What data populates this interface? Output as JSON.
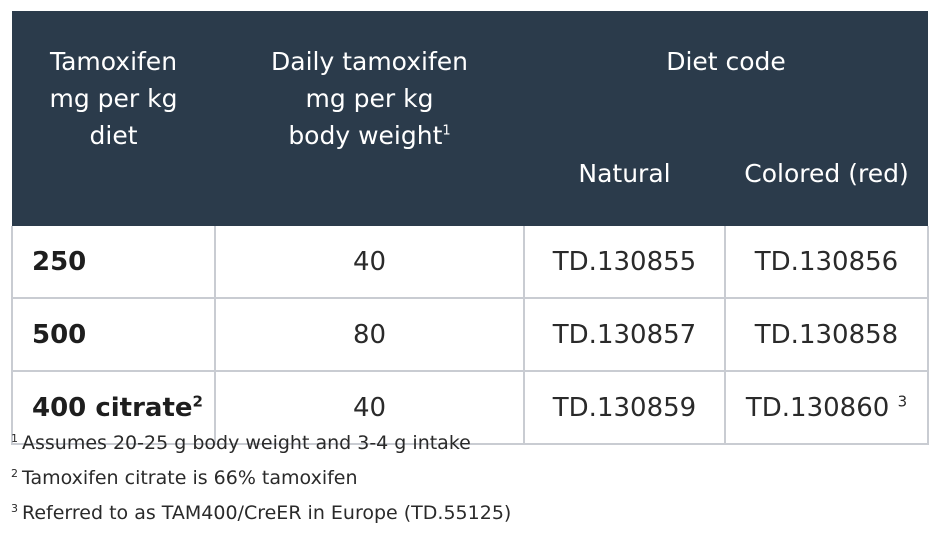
{
  "header": {
    "col1": "Tamoxifen mg per kg diet",
    "col1_lines": [
      "Tamoxifen",
      "mg per kg",
      "diet"
    ],
    "col2_lines": [
      "Daily tamoxifen",
      "mg per kg",
      "body weight"
    ],
    "col2_sup": "1",
    "diet_code": "Diet code",
    "natural": "Natural",
    "colored": "Colored (red)"
  },
  "rows": [
    {
      "tamoxifen": "250",
      "tamoxifen_sup": "",
      "daily": "40",
      "natural": "TD.130855",
      "colored": "TD.130856",
      "colored_sup": ""
    },
    {
      "tamoxifen": "500",
      "tamoxifen_sup": "",
      "daily": "80",
      "natural": "TD.130857",
      "colored": "TD.130858",
      "colored_sup": ""
    },
    {
      "tamoxifen": "400 citrate",
      "tamoxifen_sup": "2",
      "daily": "40",
      "natural": "TD.130859",
      "colored": "TD.130860",
      "colored_sup": "3"
    }
  ],
  "footnotes": [
    {
      "num": "1",
      "text": "Assumes 20-25 g body weight and 3-4 g intake"
    },
    {
      "num": "2",
      "text": "Tamoxifen citrate is 66% tamoxifen"
    },
    {
      "num": "3",
      "text": "Referred to as TAM400/CreER in Europe (TD.55125)"
    }
  ],
  "colors": {
    "header_bg": "#2b3b4b",
    "header_text": "#ffffff",
    "border": "#c9ccd2"
  }
}
